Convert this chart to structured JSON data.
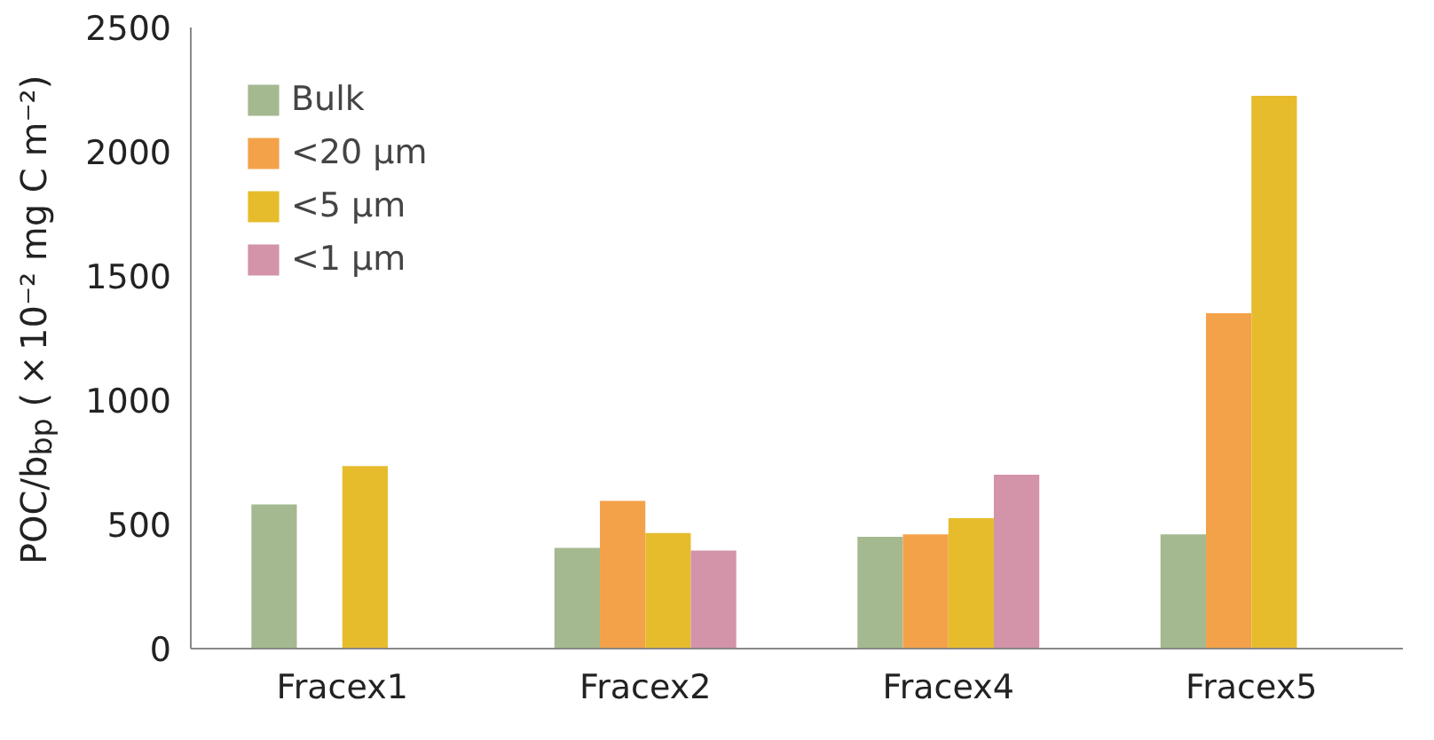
{
  "chart_data": {
    "type": "bar",
    "ylabel": "POC/b$_{bp}$ (×10⁻² mg C m⁻²)",
    "categories": [
      "Fracex1",
      "Fracex2",
      "Fracex4",
      "Fracex5"
    ],
    "series": [
      {
        "name": "Bulk",
        "color": "#a4b98f",
        "values": [
          580,
          405,
          450,
          460
        ]
      },
      {
        "name": "<20 μm",
        "color": "#f4a24a",
        "values": [
          null,
          595,
          460,
          1350
        ]
      },
      {
        "name": "<5 μm",
        "color": "#e6bc2c",
        "values": [
          735,
          465,
          525,
          2225
        ]
      },
      {
        "name": "<1 μm",
        "color": "#d393a8",
        "values": [
          null,
          395,
          700,
          null
        ]
      }
    ],
    "ylim": [
      0,
      2500
    ],
    "yticks": [
      0,
      500,
      1000,
      1500,
      2000,
      2500
    ],
    "grid": false,
    "legend": "top left"
  }
}
